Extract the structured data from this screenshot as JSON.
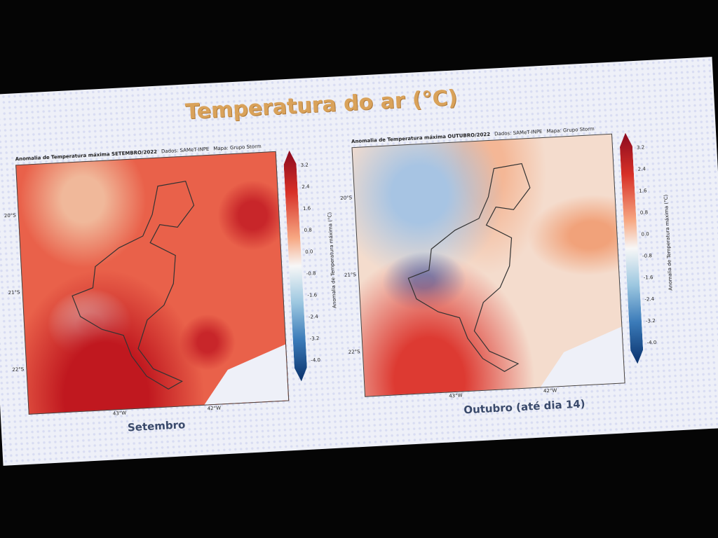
{
  "slide": {
    "title": "Temperatura do ar (°C)"
  },
  "maps": [
    {
      "header": "Anomalia de Temperatura máxima SETEMBRO/2022",
      "source": "Dados: SAMeT-INPE",
      "credit": "Mapa: Grupo Storm",
      "caption": "Setembro",
      "lat_labels": [
        "20°S",
        "21°S",
        "22°S"
      ],
      "lon_labels": [
        "43°W",
        "42°W"
      ],
      "colorbar_label": "Anomalia de Temperatura máxima (°C)",
      "colorbar_ticks": [
        "3.2",
        "2.4",
        "1.6",
        "0.8",
        "0.0",
        "-0.8",
        "-1.6",
        "-2.4",
        "-3.2",
        "-4.0"
      ]
    },
    {
      "header": "Anomalia de Temperatura máxima OUTUBRO/2022",
      "source": "Dados: SAMeT-INPE",
      "credit": "Mapa: Grupo Storm",
      "caption": "Outubro (até dia 14)",
      "lat_labels": [
        "20°S",
        "21°S",
        "22°S"
      ],
      "lon_labels": [
        "43°W",
        "42°W"
      ],
      "colorbar_label": "Anomalia de Temperatura máxima (°C)",
      "colorbar_ticks": [
        "3.2",
        "2.4",
        "1.6",
        "0.8",
        "0.0",
        "-0.8",
        "-1.6",
        "-2.4",
        "-3.2",
        "-4.0"
      ]
    }
  ]
}
